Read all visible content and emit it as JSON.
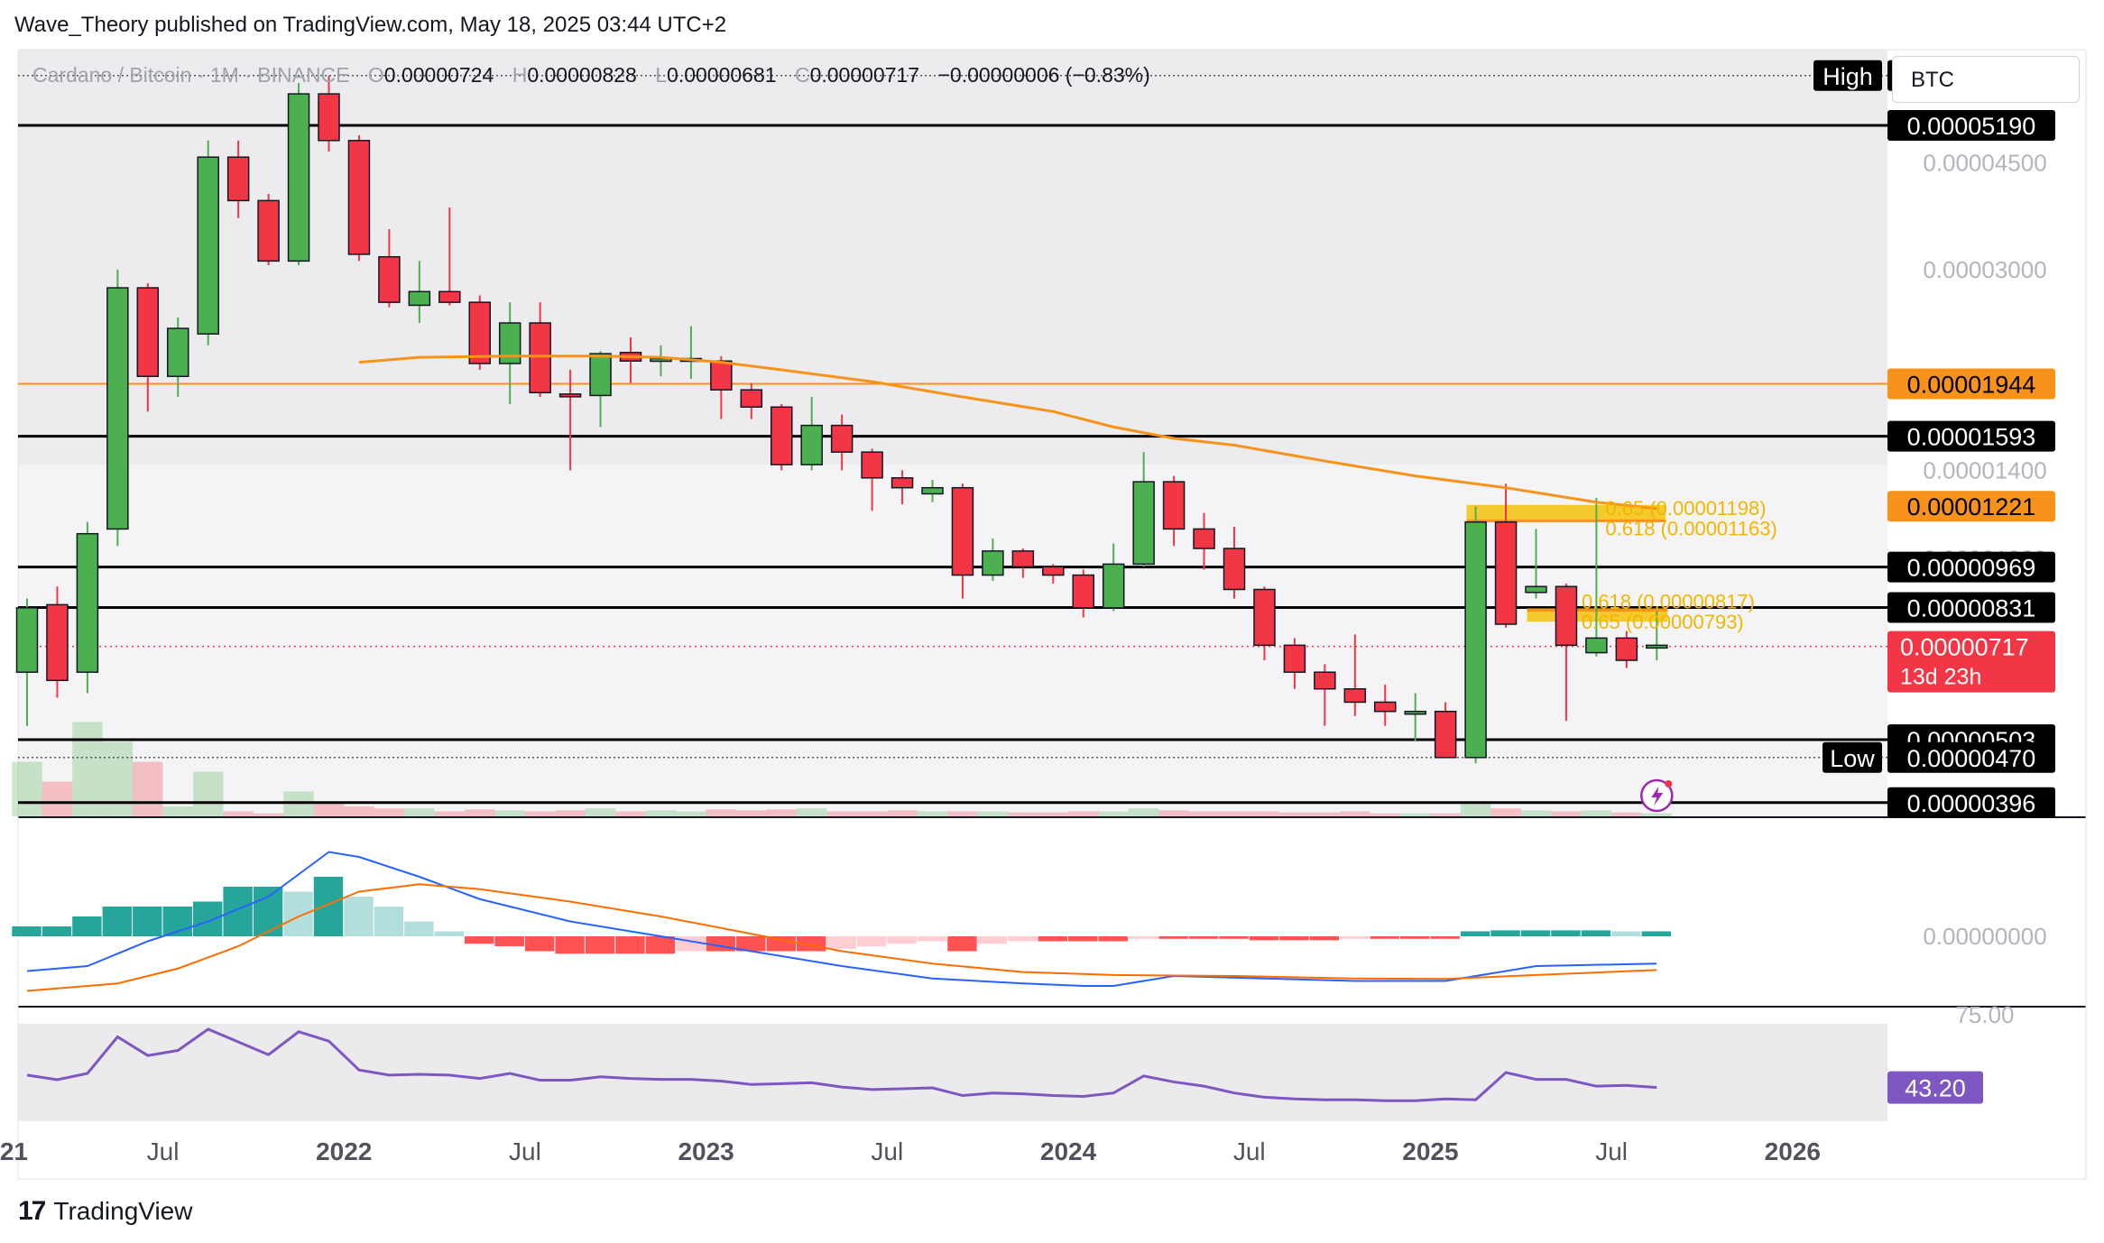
{
  "header": {
    "publisher_line": "Wave_Theory published on TradingView.com, May 18, 2025 03:44 UTC+2"
  },
  "legend": {
    "symbol": "Cardano / Bitcoin · 1M · BINANCE",
    "open_key": "O",
    "open": "0.00000724",
    "high_key": "H",
    "high": "0.00000828",
    "low_key": "L",
    "low": "0.00000681",
    "close_key": "C",
    "close": "0.00000717",
    "change": "−0.00000006 (−0.83%)"
  },
  "currency_selector": "BTC",
  "footer": {
    "brand": "TradingView",
    "logo_text": "17"
  },
  "colors": {
    "up": "#4caf50",
    "down": "#f23645",
    "ema": "#f7931a",
    "fib": "#f5c518",
    "macd": "#2962ff",
    "signal": "#ff6d00",
    "rsi": "#7e57c2",
    "bg_pane": "#e9e9ec"
  },
  "chart_data": [
    {
      "type": "candlestick",
      "title": "Cardano / Bitcoin · 1M · BINANCE",
      "y_scale": "log",
      "ylim": [
        3.4e-06,
        7.5e-06
      ],
      "x_ticks": [
        "2021",
        "Jul",
        "2022",
        "Jul",
        "2023",
        "Jul",
        "2024",
        "Jul",
        "2025",
        "Jul",
        "2026"
      ],
      "y_ticks": [
        "0.00004500",
        "0.00003000",
        "0.00001400",
        "0.00001000"
      ],
      "candles": [
        {
          "o": 6.5e-06,
          "h": 8.6e-06,
          "l": 5.3e-06,
          "c": 8.3e-06
        },
        {
          "o": 8.4e-06,
          "h": 9e-06,
          "l": 5.9e-06,
          "c": 6.3e-06
        },
        {
          "o": 6.5e-06,
          "h": 1.15e-05,
          "l": 6e-06,
          "c": 1.1e-05
        },
        {
          "o": 1.12e-05,
          "h": 3e-05,
          "l": 1.05e-05,
          "c": 2.8e-05
        },
        {
          "o": 2.8e-05,
          "h": 2.85e-05,
          "l": 1.75e-05,
          "c": 2e-05
        },
        {
          "o": 2e-05,
          "h": 2.5e-05,
          "l": 1.85e-05,
          "c": 2.4e-05
        },
        {
          "o": 2.35e-05,
          "h": 4.9e-05,
          "l": 2.25e-05,
          "c": 4.6e-05
        },
        {
          "o": 4.6e-05,
          "h": 4.9e-05,
          "l": 3.65e-05,
          "c": 3.9e-05
        },
        {
          "o": 3.9e-05,
          "h": 4e-05,
          "l": 3.05e-05,
          "c": 3.1e-05
        },
        {
          "o": 3.1e-05,
          "h": 6.1e-05,
          "l": 3.05e-05,
          "c": 5.85e-05
        },
        {
          "o": 5.85e-05,
          "h": 6.27e-05,
          "l": 4.7e-05,
          "c": 4.9e-05
        },
        {
          "o": 4.9e-05,
          "h": 5e-05,
          "l": 3.1e-05,
          "c": 3.18e-05
        },
        {
          "o": 3.15e-05,
          "h": 3.5e-05,
          "l": 2.6e-05,
          "c": 2.65e-05
        },
        {
          "o": 2.62e-05,
          "h": 3.1e-05,
          "l": 2.45e-05,
          "c": 2.76e-05
        },
        {
          "o": 2.76e-05,
          "h": 3.8e-05,
          "l": 2.62e-05,
          "c": 2.65e-05
        },
        {
          "o": 2.65e-05,
          "h": 2.72e-05,
          "l": 2.05e-05,
          "c": 2.1e-05
        },
        {
          "o": 2.1e-05,
          "h": 2.65e-05,
          "l": 1.8e-05,
          "c": 2.45e-05
        },
        {
          "o": 2.45e-05,
          "h": 2.65e-05,
          "l": 1.85e-05,
          "c": 1.88e-05
        },
        {
          "o": 1.87e-05,
          "h": 2.05e-05,
          "l": 1.4e-05,
          "c": 1.86e-05
        },
        {
          "o": 1.86e-05,
          "h": 2.2e-05,
          "l": 1.65e-05,
          "c": 2.18e-05
        },
        {
          "o": 2.19e-05,
          "h": 2.32e-05,
          "l": 1.95e-05,
          "c": 2.12e-05
        },
        {
          "o": 2.12e-05,
          "h": 2.25e-05,
          "l": 2e-05,
          "c": 2.14e-05
        },
        {
          "o": 2.14e-05,
          "h": 2.42e-05,
          "l": 1.98e-05,
          "c": 2.14e-05
        },
        {
          "o": 2.12e-05,
          "h": 2.16e-05,
          "l": 1.7e-05,
          "c": 1.9e-05
        },
        {
          "o": 1.9e-05,
          "h": 1.95e-05,
          "l": 1.7e-05,
          "c": 1.78e-05
        },
        {
          "o": 1.78e-05,
          "h": 1.8e-05,
          "l": 1.4e-05,
          "c": 1.43e-05
        },
        {
          "o": 1.43e-05,
          "h": 1.85e-05,
          "l": 1.4e-05,
          "c": 1.66e-05
        },
        {
          "o": 1.66e-05,
          "h": 1.73e-05,
          "l": 1.4e-05,
          "c": 1.5e-05
        },
        {
          "o": 1.5e-05,
          "h": 1.52e-05,
          "l": 1.2e-05,
          "c": 1.36e-05
        },
        {
          "o": 1.36e-05,
          "h": 1.4e-05,
          "l": 1.23e-05,
          "c": 1.31e-05
        },
        {
          "o": 1.28e-05,
          "h": 1.35e-05,
          "l": 1.24e-05,
          "c": 1.31e-05
        },
        {
          "o": 1.31e-05,
          "h": 1.33e-05,
          "l": 8.6e-06,
          "c": 9.4e-06
        },
        {
          "o": 9.4e-06,
          "h": 1.08e-05,
          "l": 9.2e-06,
          "c": 1.03e-05
        },
        {
          "o": 1.03e-05,
          "h": 1.04e-05,
          "l": 9.3e-06,
          "c": 9.7e-06
        },
        {
          "o": 9.7e-06,
          "h": 9.8e-06,
          "l": 9.1e-06,
          "c": 9.4e-06
        },
        {
          "o": 9.4e-06,
          "h": 9.6e-06,
          "l": 8e-06,
          "c": 8.3e-06
        },
        {
          "o": 8.3e-06,
          "h": 1.06e-05,
          "l": 8.2e-06,
          "c": 9.8e-06
        },
        {
          "o": 9.8e-06,
          "h": 1.5e-05,
          "l": 9.7e-06,
          "c": 1.34e-05
        },
        {
          "o": 1.34e-05,
          "h": 1.37e-05,
          "l": 1.05e-05,
          "c": 1.12e-05
        },
        {
          "o": 1.12e-05,
          "h": 1.19e-05,
          "l": 9.6e-06,
          "c": 1.04e-05
        },
        {
          "o": 1.04e-05,
          "h": 1.13e-05,
          "l": 8.6e-06,
          "c": 8.9e-06
        },
        {
          "o": 8.9e-06,
          "h": 9e-06,
          "l": 6.8e-06,
          "c": 7.2e-06
        },
        {
          "o": 7.2e-06,
          "h": 7.4e-06,
          "l": 6.1e-06,
          "c": 6.5e-06
        },
        {
          "o": 6.5e-06,
          "h": 6.7e-06,
          "l": 5.3e-06,
          "c": 6.1e-06
        },
        {
          "o": 6.1e-06,
          "h": 7.5e-06,
          "l": 5.5e-06,
          "c": 5.8e-06
        },
        {
          "o": 5.8e-06,
          "h": 6.2e-06,
          "l": 5.3e-06,
          "c": 5.6e-06
        },
        {
          "o": 5.6e-06,
          "h": 6e-06,
          "l": 5e-06,
          "c": 5.6e-06
        },
        {
          "o": 5.6e-06,
          "h": 5.8e-06,
          "l": 4.7e-06,
          "c": 4.7e-06
        },
        {
          "o": 4.7e-06,
          "h": 1.22e-05,
          "l": 4.6e-06,
          "c": 1.15e-05
        },
        {
          "o": 1.15e-05,
          "h": 1.33e-05,
          "l": 7.7e-06,
          "c": 7.8e-06
        },
        {
          "o": 8.8e-06,
          "h": 1.12e-05,
          "l": 8.6e-06,
          "c": 9e-06
        },
        {
          "o": 9e-06,
          "h": 9.1e-06,
          "l": 5.4e-06,
          "c": 7.2e-06
        },
        {
          "o": 7e-06,
          "h": 1.26e-05,
          "l": 6.9e-06,
          "c": 7.4e-06
        },
        {
          "o": 7.4e-06,
          "h": 7.6e-06,
          "l": 6.6e-06,
          "c": 6.8e-06
        },
        {
          "o": 7.2e-06,
          "h": 8.2e-06,
          "l": 6.8e-06,
          "c": 7.2e-06
        }
      ],
      "ema": [
        [
          11,
          2.11e-05
        ],
        [
          13,
          2.15e-05
        ],
        [
          16,
          2.16e-05
        ],
        [
          19,
          2.16e-05
        ],
        [
          21,
          2.15e-05
        ],
        [
          23,
          2.11e-05
        ],
        [
          25,
          2.05e-05
        ],
        [
          28,
          1.96e-05
        ],
        [
          31,
          1.85e-05
        ],
        [
          34,
          1.75e-05
        ],
        [
          36,
          1.65e-05
        ],
        [
          38,
          1.58e-05
        ],
        [
          40,
          1.54e-05
        ],
        [
          43,
          1.45e-05
        ],
        [
          46,
          1.37e-05
        ],
        [
          49,
          1.31e-05
        ],
        [
          52,
          1.24e-05
        ],
        [
          54,
          1.21e-05
        ]
      ],
      "horizontal_lines": [
        {
          "value": 6.271e-05,
          "style": "dotted",
          "label": "High",
          "price": "0.00006271"
        },
        {
          "value": 5.19e-05,
          "style": "solid",
          "price": "0.00005190"
        },
        {
          "value": 1.944e-05,
          "style": "orange",
          "price": "0.00001944"
        },
        {
          "value": 1.593e-05,
          "style": "solid",
          "price": "0.00001593"
        },
        {
          "value": 9.69e-06,
          "style": "solid",
          "price": "0.00000969"
        },
        {
          "value": 8.31e-06,
          "style": "solid",
          "price": "0.00000831"
        },
        {
          "value": 5.03e-06,
          "style": "solid",
          "price": "0.00000503"
        },
        {
          "value": 4.7e-06,
          "style": "dotted",
          "label": "Low",
          "price": "0.00000470"
        },
        {
          "value": 3.96e-06,
          "style": "solid",
          "price": "0.00000396"
        }
      ],
      "current_price": {
        "value": 7.17e-06,
        "price": "0.00000717",
        "countdown": "13d 23h"
      },
      "ema_badge": {
        "value": 1.221e-05,
        "price": "0.00001221"
      },
      "fib_annotations": [
        {
          "text": "0.65 (0.00001198)",
          "value": 1.198e-05
        },
        {
          "text": "0.618 (0.00001163)",
          "value": 1.163e-05
        },
        {
          "text": "0.618 (0.00000817)",
          "value": 8.17e-06
        },
        {
          "text": "0.65 (0.00000793)",
          "value": 7.93e-06
        }
      ],
      "volume": [
        0.55,
        0.35,
        0.95,
        0.75,
        0.55,
        0.1,
        0.45,
        0.05,
        0.03,
        0.25,
        0.15,
        0.1,
        0.08,
        0.08,
        0.05,
        0.07,
        0.06,
        0.05,
        0.06,
        0.08,
        0.05,
        0.06,
        0.05,
        0.07,
        0.06,
        0.07,
        0.08,
        0.05,
        0.05,
        0.06,
        0.05,
        0.05,
        0.05,
        0.04,
        0.04,
        0.05,
        0.05,
        0.08,
        0.06,
        0.05,
        0.05,
        0.05,
        0.04,
        0.04,
        0.05,
        0.03,
        0.03,
        0.03,
        0.14,
        0.08,
        0.06,
        0.05,
        0.06,
        0.04,
        0.03
      ]
    },
    {
      "type": "bar",
      "title": "MACD",
      "y_ticks": [
        "0.00000000"
      ],
      "histogram": [
        0.2,
        0.2,
        0.4,
        0.6,
        0.6,
        0.6,
        0.7,
        1.0,
        1.0,
        0.9,
        1.2,
        0.8,
        0.6,
        0.3,
        0.1,
        -0.15,
        -0.2,
        -0.3,
        -0.35,
        -0.35,
        -0.35,
        -0.35,
        -0.3,
        -0.3,
        -0.3,
        -0.3,
        -0.3,
        -0.25,
        -0.2,
        -0.15,
        -0.1,
        -0.3,
        -0.15,
        -0.1,
        -0.1,
        -0.1,
        -0.1,
        -0.05,
        -0.05,
        -0.05,
        -0.05,
        -0.08,
        -0.08,
        -0.08,
        -0.05,
        -0.05,
        -0.05,
        -0.05,
        0.1,
        0.12,
        0.12,
        0.12,
        0.12,
        0.1,
        0.1
      ],
      "macd_line": [
        [
          0,
          -0.7
        ],
        [
          2,
          -0.6
        ],
        [
          4,
          -0.1
        ],
        [
          6,
          0.3
        ],
        [
          8,
          0.8
        ],
        [
          10,
          1.7
        ],
        [
          11,
          1.6
        ],
        [
          13,
          1.2
        ],
        [
          15,
          0.75
        ],
        [
          18,
          0.3
        ],
        [
          21,
          0.0
        ],
        [
          24,
          -0.3
        ],
        [
          27,
          -0.6
        ],
        [
          30,
          -0.85
        ],
        [
          33,
          -0.95
        ],
        [
          35,
          -1.0
        ],
        [
          36,
          -1.0
        ],
        [
          38,
          -0.8
        ],
        [
          41,
          -0.85
        ],
        [
          44,
          -0.9
        ],
        [
          47,
          -0.9
        ],
        [
          48,
          -0.8
        ],
        [
          50,
          -0.6
        ],
        [
          54,
          -0.55
        ]
      ],
      "signal_line": [
        [
          0,
          -1.1
        ],
        [
          3,
          -0.95
        ],
        [
          5,
          -0.65
        ],
        [
          7,
          -0.2
        ],
        [
          9,
          0.4
        ],
        [
          11,
          0.9
        ],
        [
          13,
          1.05
        ],
        [
          15,
          0.95
        ],
        [
          18,
          0.7
        ],
        [
          21,
          0.4
        ],
        [
          24,
          0.05
        ],
        [
          27,
          -0.3
        ],
        [
          30,
          -0.55
        ],
        [
          33,
          -0.72
        ],
        [
          36,
          -0.78
        ],
        [
          40,
          -0.8
        ],
        [
          44,
          -0.85
        ],
        [
          47,
          -0.86
        ],
        [
          50,
          -0.78
        ],
        [
          54,
          -0.68
        ]
      ]
    },
    {
      "type": "line",
      "title": "RSI",
      "ylim": [
        25,
        78
      ],
      "y_ticks": [
        "75.00"
      ],
      "current_value": "43.20",
      "values": [
        [
          0,
          50.5
        ],
        [
          1,
          47.8
        ],
        [
          2,
          51.5
        ],
        [
          3,
          73.0
        ],
        [
          4,
          62.0
        ],
        [
          5,
          65.0
        ],
        [
          6,
          77.5
        ],
        [
          7,
          70.0
        ],
        [
          8,
          62.5
        ],
        [
          9,
          76.0
        ],
        [
          10,
          70.5
        ],
        [
          11,
          53.5
        ],
        [
          12,
          50.5
        ],
        [
          13,
          51.0
        ],
        [
          14,
          50.5
        ],
        [
          15,
          48.5
        ],
        [
          16,
          51.5
        ],
        [
          17,
          47.5
        ],
        [
          18,
          47.5
        ],
        [
          19,
          49.5
        ],
        [
          20,
          48.5
        ],
        [
          21,
          48.0
        ],
        [
          22,
          48.0
        ],
        [
          23,
          47.0
        ],
        [
          24,
          45.0
        ],
        [
          25,
          45.5
        ],
        [
          26,
          46.0
        ],
        [
          27,
          43.5
        ],
        [
          28,
          42.0
        ],
        [
          29,
          42.5
        ],
        [
          30,
          43.0
        ],
        [
          31,
          38.5
        ],
        [
          32,
          40.0
        ],
        [
          33,
          39.5
        ],
        [
          34,
          38.5
        ],
        [
          35,
          38.0
        ],
        [
          36,
          40.0
        ],
        [
          37,
          50.0
        ],
        [
          38,
          46.5
        ],
        [
          39,
          44.0
        ],
        [
          40,
          40.0
        ],
        [
          41,
          37.5
        ],
        [
          42,
          36.5
        ],
        [
          43,
          36.0
        ],
        [
          44,
          36.0
        ],
        [
          45,
          35.5
        ],
        [
          46,
          35.5
        ],
        [
          47,
          36.5
        ],
        [
          48,
          36.0
        ],
        [
          49,
          52.0
        ],
        [
          50,
          48.0
        ],
        [
          51,
          48.0
        ],
        [
          52,
          44.0
        ],
        [
          53,
          44.5
        ],
        [
          54,
          43.2
        ]
      ]
    }
  ]
}
